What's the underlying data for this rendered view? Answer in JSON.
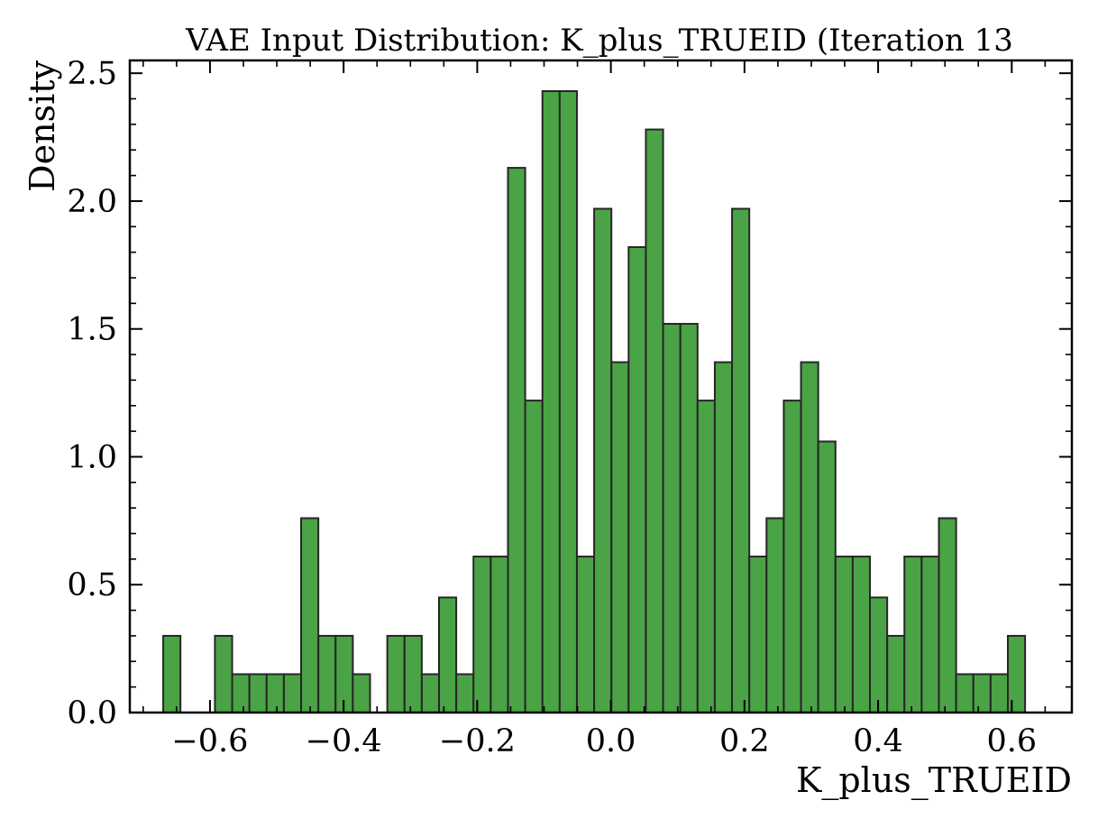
{
  "chart_data": {
    "type": "bar",
    "title": "VAE Input Distribution: K_plus_TRUEID (Iteration 13",
    "xlabel": "K_plus_TRUEID",
    "ylabel": "Density",
    "xlim": [
      -0.72,
      0.69
    ],
    "ylim": [
      0,
      2.55
    ],
    "x_ticks": [
      -0.6,
      -0.4,
      -0.2,
      0.0,
      0.2,
      0.4,
      0.6
    ],
    "x_tick_labels": [
      "−0.6",
      "−0.4",
      "−0.2",
      "0.0",
      "0.2",
      "0.4",
      "0.6"
    ],
    "y_ticks": [
      0.0,
      0.5,
      1.0,
      1.5,
      2.0,
      2.5
    ],
    "y_tick_labels": [
      "0.0",
      "0.5",
      "1.0",
      "1.5",
      "2.0",
      "2.5"
    ],
    "bin_start": -0.67,
    "bin_width": 0.0258,
    "values": [
      0.3,
      0,
      0,
      0.3,
      0.15,
      0.15,
      0.15,
      0.15,
      0.76,
      0.3,
      0.3,
      0.15,
      0,
      0.3,
      0.3,
      0.15,
      0.45,
      0.15,
      0.61,
      0.61,
      2.13,
      1.22,
      2.43,
      2.43,
      0.61,
      1.97,
      1.37,
      1.82,
      2.28,
      1.52,
      1.52,
      1.22,
      1.37,
      1.97,
      0.61,
      0.76,
      1.22,
      1.37,
      1.06,
      0.61,
      0.61,
      0.45,
      0.3,
      0.61,
      0.61,
      0.76,
      0.15,
      0.15,
      0.15,
      0.3
    ],
    "bar_color": "#4aa345",
    "edge_color": "#262626",
    "grid": false,
    "legend": "none"
  }
}
